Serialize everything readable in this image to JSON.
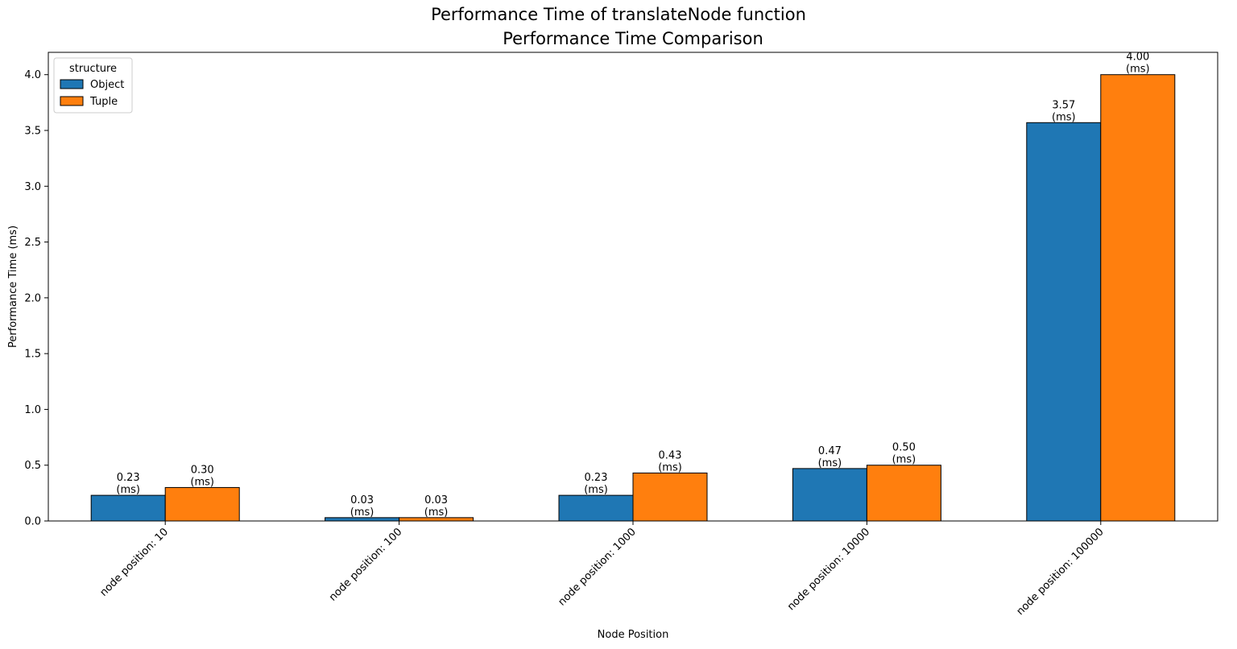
{
  "chart_data": {
    "type": "bar",
    "suptitle": "Performance Time of translateNode function",
    "title": "Performance Time Comparison",
    "xlabel": "Node Position",
    "ylabel": "Performance Time (ms)",
    "ylim": [
      0,
      4.2
    ],
    "yticks": [
      "0.0",
      "0.5",
      "1.0",
      "1.5",
      "2.0",
      "2.5",
      "3.0",
      "3.5",
      "4.0"
    ],
    "categories": [
      "node position: 10",
      "node position: 100",
      "node position: 1000",
      "node position: 10000",
      "node position: 100000"
    ],
    "series": [
      {
        "name": "Object",
        "color": "#1f77b4",
        "values": [
          0.23,
          0.03,
          0.23,
          0.47,
          3.57
        ],
        "labels": [
          "0.23",
          "0.03",
          "0.23",
          "0.47",
          "3.57"
        ]
      },
      {
        "name": "Tuple",
        "color": "#ff7f0e",
        "values": [
          0.3,
          0.03,
          0.43,
          0.5,
          4.0
        ],
        "labels": [
          "0.30",
          "0.03",
          "0.43",
          "0.50",
          "4.00"
        ]
      }
    ],
    "value_unit_label": "(ms)",
    "legend": {
      "title": "structure",
      "position": "top-left"
    },
    "grid": false
  }
}
